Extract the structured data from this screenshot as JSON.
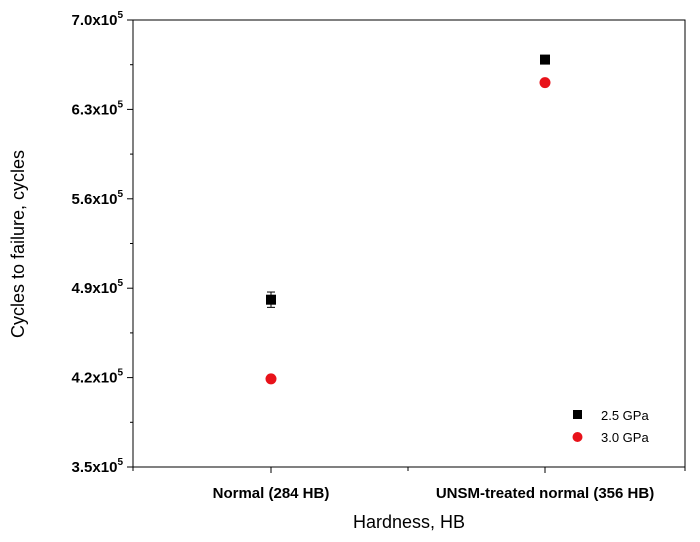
{
  "chart_data": {
    "type": "scatter",
    "xlabel": "Hardness, HB",
    "ylabel": "Cycles to failure, cycles",
    "categories": [
      "Normal (284 HB)",
      "UNSM-treated normal (356 HB)"
    ],
    "ylim": [
      350000,
      700000
    ],
    "yticks": [
      {
        "value": 350000,
        "mantissa": "3.5x10",
        "exp": "5"
      },
      {
        "value": 420000,
        "mantissa": "4.2x10",
        "exp": "5"
      },
      {
        "value": 490000,
        "mantissa": "4.9x10",
        "exp": "5"
      },
      {
        "value": 560000,
        "mantissa": "5.6x10",
        "exp": "5"
      },
      {
        "value": 630000,
        "mantissa": "6.3x10",
        "exp": "5"
      },
      {
        "value": 700000,
        "mantissa": "7.0x10",
        "exp": "5"
      }
    ],
    "series": [
      {
        "name": "2.5 GPa",
        "marker": "square",
        "color": "#000000",
        "values": [
          481000,
          669000
        ],
        "errors": [
          6000,
          0
        ]
      },
      {
        "name": "3.0 GPa",
        "marker": "circle",
        "color": "#e8121a",
        "values": [
          419000,
          651000
        ],
        "errors": [
          0,
          0
        ]
      }
    ],
    "legend_position": "bottom-right",
    "grid": false
  }
}
